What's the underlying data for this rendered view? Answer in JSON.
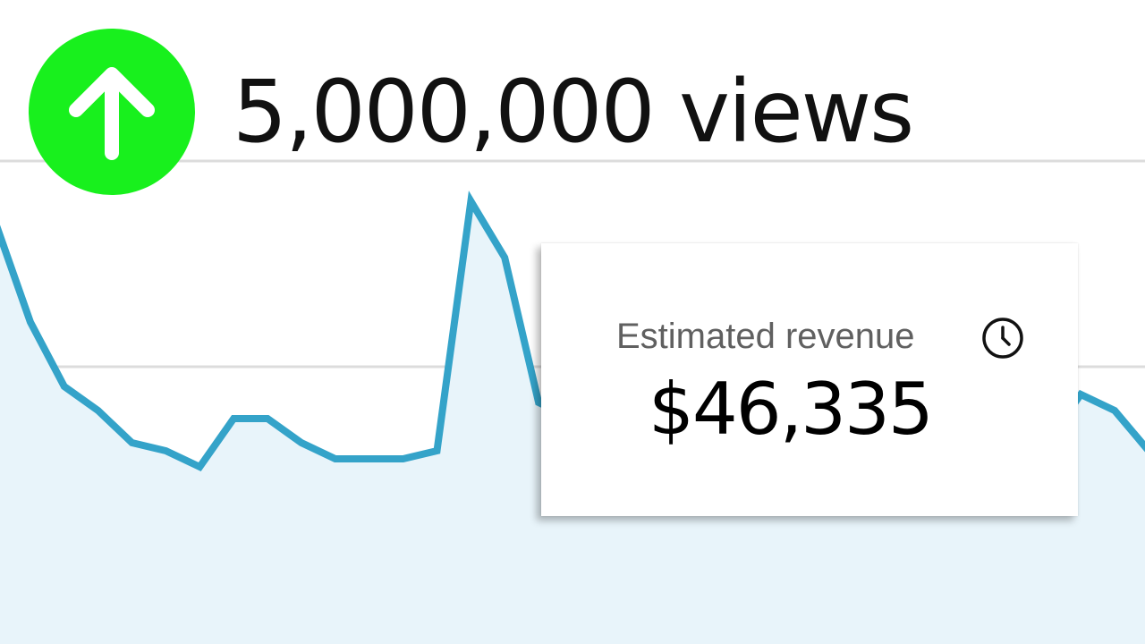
{
  "header": {
    "views_text": "5,000,000 views",
    "trend_icon": "arrow-up-icon",
    "badge_color": "#18f01d"
  },
  "revenue_card": {
    "label": "Estimated revenue",
    "value": "$46,335",
    "icon": "clock-icon"
  },
  "chart_data": {
    "type": "area",
    "line_color": "#34a3c9",
    "fill_color": "#e8f4fa",
    "grid": true,
    "x": [
      0,
      1,
      2,
      3,
      4,
      5,
      6,
      7,
      8,
      9,
      10,
      11,
      12,
      13,
      14,
      15,
      16,
      17,
      18,
      19,
      20,
      21,
      22,
      23,
      24,
      25,
      26,
      27,
      28,
      29,
      30,
      31,
      32,
      33,
      34
    ],
    "values": [
      0.52,
      0.4,
      0.32,
      0.29,
      0.25,
      0.24,
      0.22,
      0.28,
      0.28,
      0.25,
      0.23,
      0.23,
      0.23,
      0.24,
      0.55,
      0.48,
      0.3,
      0.28,
      0.24,
      0.24,
      0.24,
      0.24,
      0.24,
      0.24,
      0.24,
      0.24,
      0.24,
      0.24,
      0.24,
      0.24,
      0.24,
      0.25,
      0.31,
      0.29,
      0.24
    ],
    "ylim": [
      0,
      0.6
    ]
  }
}
